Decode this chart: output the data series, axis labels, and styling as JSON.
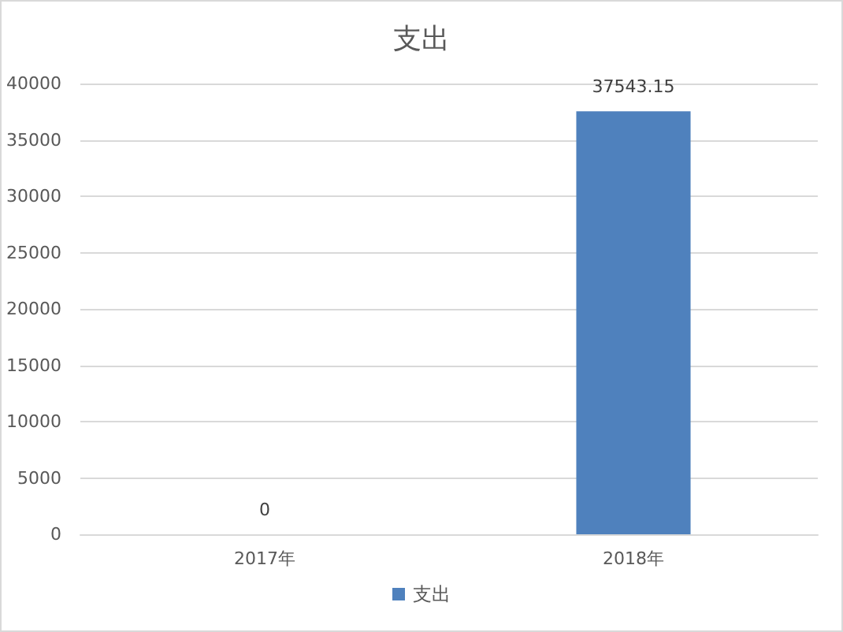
{
  "chart_data": {
    "type": "bar",
    "title": "支出",
    "categories": [
      "2017年",
      "2018年"
    ],
    "series": [
      {
        "name": "支出",
        "color": "#4f81bd",
        "values": [
          0,
          37543.15
        ]
      }
    ],
    "ylim": [
      0,
      40000
    ],
    "yticks": [
      0,
      5000,
      10000,
      15000,
      20000,
      25000,
      30000,
      35000,
      40000
    ],
    "grid": "y",
    "legend": "bottom",
    "data_labels": true
  }
}
